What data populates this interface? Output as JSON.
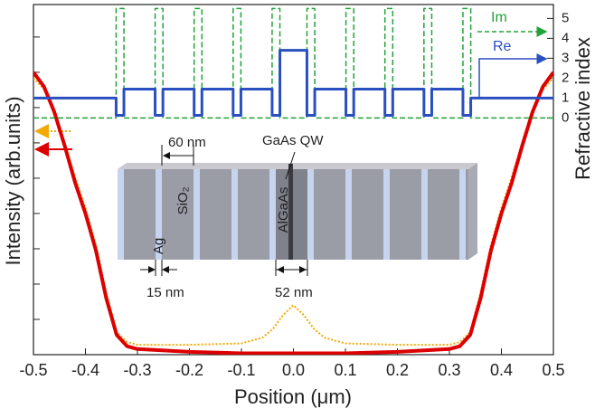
{
  "chart_data": {
    "type": "line",
    "xlabel": "Position (μm)",
    "ylabel": "Intensity (arb.units)",
    "y2label": "Refractive index",
    "xlim": [
      -0.5,
      0.5
    ],
    "xticks": [
      -0.5,
      -0.4,
      -0.3,
      -0.2,
      -0.1,
      {
        "value": 0,
        "label": "0.0"
      },
      0.1,
      0.2,
      0.3,
      0.4,
      0.5
    ],
    "ylim": [
      0,
      1.24
    ],
    "yticks": [
      0.125,
      0.25,
      0.375,
      0.5,
      0.625,
      0.75,
      0.875,
      1.0,
      1.125
    ],
    "y2lim": [
      -11.9,
      5.7
    ],
    "y2ticks": [
      0,
      1,
      2,
      3,
      4,
      5
    ],
    "series": [
      {
        "color": "#f2a900",
        "width": 2,
        "dash": "dotted",
        "x": [
          -0.5,
          -0.48,
          -0.46,
          -0.44,
          -0.42,
          -0.4,
          -0.38,
          -0.36,
          -0.34,
          -0.32,
          -0.3,
          -0.2,
          -0.1,
          -0.06,
          -0.04,
          -0.02,
          0,
          0.02,
          0.04,
          0.06,
          0.1,
          0.2,
          0.3,
          0.32,
          0.34,
          0.36,
          0.38,
          0.4,
          0.42,
          0.44,
          0.46,
          0.48,
          0.5
        ],
        "values": [
          0.98,
          0.94,
          0.86,
          0.75,
          0.63,
          0.52,
          0.39,
          0.22,
          0.08,
          0.045,
          0.035,
          0.035,
          0.04,
          0.06,
          0.09,
          0.14,
          0.175,
          0.14,
          0.09,
          0.06,
          0.04,
          0.035,
          0.035,
          0.045,
          0.08,
          0.22,
          0.39,
          0.52,
          0.63,
          0.75,
          0.86,
          0.94,
          0.98
        ]
      },
      {
        "color": "#dd0000",
        "width": 4,
        "dash": "solid",
        "x": [
          -0.5,
          -0.48,
          -0.46,
          -0.44,
          -0.42,
          -0.4,
          -0.38,
          -0.36,
          -0.34,
          -0.32,
          -0.3,
          -0.2,
          -0.1,
          0,
          0.1,
          0.2,
          0.3,
          0.32,
          0.34,
          0.36,
          0.38,
          0.4,
          0.42,
          0.44,
          0.46,
          0.48,
          0.5
        ],
        "values": [
          1.0,
          0.95,
          0.86,
          0.74,
          0.61,
          0.5,
          0.37,
          0.2,
          0.07,
          0.03,
          0.02,
          0.01,
          0.005,
          0.005,
          0.005,
          0.01,
          0.02,
          0.03,
          0.07,
          0.2,
          0.37,
          0.5,
          0.61,
          0.74,
          0.86,
          0.95,
          1.0
        ]
      },
      {
        "name": "Im",
        "color": "#22a33a",
        "width": 1.5,
        "dash": "dashed",
        "axis": "y2",
        "x": [
          -0.5,
          -0.341,
          -0.341,
          -0.326,
          -0.326,
          -0.266,
          -0.266,
          -0.251,
          -0.251,
          -0.191,
          -0.191,
          -0.176,
          -0.176,
          -0.116,
          -0.116,
          -0.101,
          -0.101,
          -0.041,
          -0.041,
          -0.026,
          -0.026,
          0.026,
          0.026,
          0.041,
          0.041,
          0.101,
          0.101,
          0.116,
          0.116,
          0.176,
          0.176,
          0.191,
          0.191,
          0.251,
          0.251,
          0.266,
          0.266,
          0.326,
          0.326,
          0.341,
          0.341,
          0.5
        ],
        "values": [
          0,
          0,
          5.5,
          5.5,
          0,
          0,
          5.5,
          5.5,
          0,
          0,
          5.5,
          5.5,
          0,
          0,
          5.5,
          5.5,
          0,
          0,
          5.5,
          5.5,
          0,
          0,
          5.5,
          5.5,
          0,
          0,
          5.5,
          5.5,
          0,
          0,
          5.5,
          5.5,
          0,
          0,
          5.5,
          5.5,
          0,
          0,
          5.5,
          5.5,
          0,
          0
        ]
      },
      {
        "name": "Re",
        "color": "#2a4fc0",
        "width": 3,
        "dash": "solid",
        "axis": "y2",
        "x": [
          -0.5,
          -0.341,
          -0.341,
          -0.326,
          -0.326,
          -0.266,
          -0.266,
          -0.251,
          -0.251,
          -0.191,
          -0.191,
          -0.176,
          -0.176,
          -0.116,
          -0.116,
          -0.101,
          -0.101,
          -0.041,
          -0.041,
          -0.026,
          -0.026,
          0.026,
          0.026,
          0.041,
          0.041,
          0.101,
          0.101,
          0.116,
          0.116,
          0.176,
          0.176,
          0.191,
          0.191,
          0.251,
          0.251,
          0.266,
          0.266,
          0.326,
          0.326,
          0.341,
          0.341,
          0.5
        ],
        "values": [
          1,
          1,
          0.13,
          0.13,
          1.45,
          1.45,
          0.13,
          0.13,
          1.45,
          1.45,
          0.13,
          0.13,
          1.45,
          1.45,
          0.13,
          0.13,
          1.45,
          1.45,
          0.13,
          0.13,
          3.4,
          3.4,
          0.13,
          0.13,
          1.45,
          1.45,
          0.13,
          0.13,
          1.45,
          1.45,
          0.13,
          0.13,
          1.45,
          1.45,
          0.13,
          0.13,
          1.45,
          1.45,
          0.13,
          0.13,
          1,
          1
        ]
      }
    ],
    "annotations": [
      "60 nm",
      "SiO₂",
      "GaAs QW",
      "AlGaAs",
      "Ag",
      "15 nm",
      "52 nm"
    ]
  }
}
